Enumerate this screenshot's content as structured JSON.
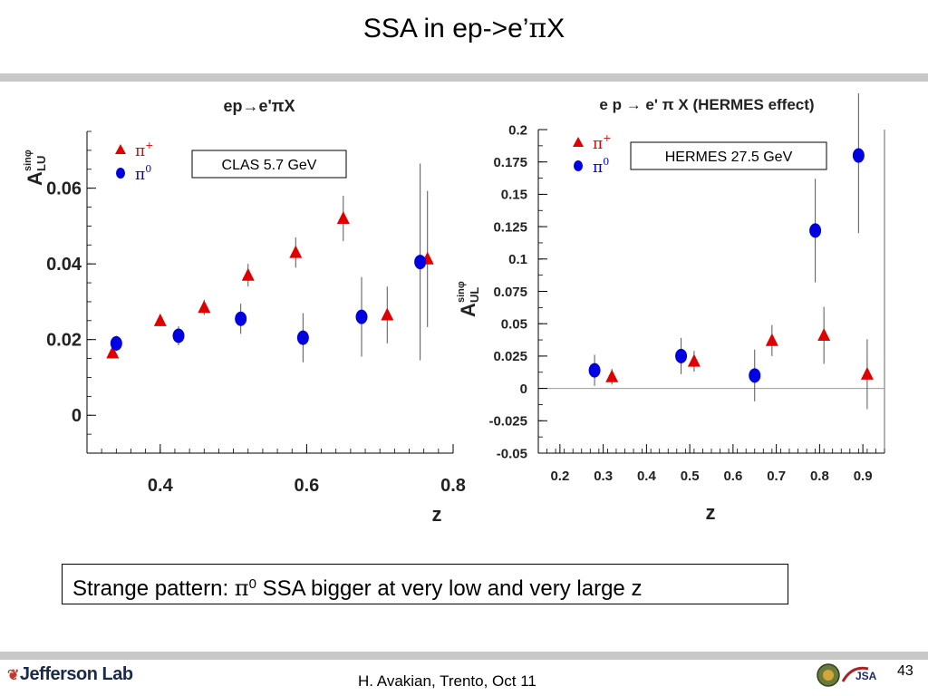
{
  "slide": {
    "title_prefix": "SSA in ep->e’",
    "title_pi": "π",
    "title_suffix": "X",
    "note_prefix": "Strange pattern: ",
    "note_pi": "π",
    "note_sup": "0",
    "note_suffix": " SSA bigger at very low and very large z",
    "footer": "H. Avakian, Trento, Oct 11",
    "page_number": "43",
    "logo_left": "Jefferson Lab",
    "logo_right": "JSA"
  },
  "chart_data": [
    {
      "type": "scatter",
      "title": "ep→e'πX",
      "xlabel": "z",
      "ylabel_main": "A",
      "ylabel_sup": "sinφ",
      "ylabel_sub": "LU",
      "annotation": "CLAS 5.7 GeV",
      "xlim": [
        0.3,
        0.8
      ],
      "ylim": [
        -0.01,
        0.075
      ],
      "xticks": [
        0.4,
        0.6,
        0.8
      ],
      "xtick_labels": [
        "0.4",
        "0.6",
        "0.8"
      ],
      "yticks": [
        0,
        0.02,
        0.04,
        0.06
      ],
      "ytick_labels": [
        "0",
        "0.02",
        "0.04",
        "0.06"
      ],
      "grid": false,
      "legend_position": "top-left",
      "series": [
        {
          "name": "π+",
          "marker": "triangle",
          "color": "#e00000",
          "points": [
            {
              "x": 0.335,
              "y": 0.0165,
              "err": 0.0015
            },
            {
              "x": 0.4,
              "y": 0.025,
              "err": 0.0015
            },
            {
              "x": 0.46,
              "y": 0.0285,
              "err": 0.002
            },
            {
              "x": 0.52,
              "y": 0.037,
              "err": 0.003
            },
            {
              "x": 0.585,
              "y": 0.043,
              "err": 0.004
            },
            {
              "x": 0.65,
              "y": 0.052,
              "err": 0.006
            },
            {
              "x": 0.71,
              "y": 0.0265,
              "err": 0.0075
            },
            {
              "x": 0.765,
              "y": 0.0413,
              "err": 0.018
            }
          ]
        },
        {
          "name": "π0",
          "marker": "circle",
          "color": "#0000e0",
          "points": [
            {
              "x": 0.34,
              "y": 0.019,
              "err": 0.002
            },
            {
              "x": 0.425,
              "y": 0.021,
              "err": 0.0025
            },
            {
              "x": 0.51,
              "y": 0.0255,
              "err": 0.004
            },
            {
              "x": 0.595,
              "y": 0.0205,
              "err": 0.0065
            },
            {
              "x": 0.675,
              "y": 0.026,
              "err": 0.0105
            },
            {
              "x": 0.755,
              "y": 0.0405,
              "err": 0.026
            }
          ]
        }
      ]
    },
    {
      "type": "scatter",
      "title": "e p → e' π X (HERMES effect)",
      "xlabel": "z",
      "ylabel_main": "A",
      "ylabel_sup": "sinφ",
      "ylabel_sub": "UL",
      "annotation": "HERMES 27.5 GeV",
      "xlim": [
        0.15,
        0.95
      ],
      "ylim": [
        -0.05,
        0.2
      ],
      "xticks": [
        0.2,
        0.3,
        0.4,
        0.5,
        0.6,
        0.7,
        0.8,
        0.9
      ],
      "xtick_labels": [
        "0.2",
        "0.3",
        "0.4",
        "0.5",
        "0.6",
        "0.7",
        "0.8",
        "0.9"
      ],
      "yticks": [
        -0.05,
        -0.025,
        0,
        0.025,
        0.05,
        0.075,
        0.1,
        0.125,
        0.15,
        0.175,
        0.2
      ],
      "ytick_labels": [
        "-0.05",
        "-0.025",
        "0",
        "0.025",
        "0.05",
        "0.075",
        "0.1",
        "0.125",
        "0.15",
        "0.175",
        "0.2"
      ],
      "zero_line": true,
      "grid": false,
      "legend_position": "top-left",
      "series": [
        {
          "name": "π+",
          "marker": "triangle",
          "color": "#e00000",
          "points": [
            {
              "x": 0.32,
              "y": 0.009,
              "err": 0.006
            },
            {
              "x": 0.51,
              "y": 0.021,
              "err": 0.008
            },
            {
              "x": 0.69,
              "y": 0.037,
              "err": 0.012
            },
            {
              "x": 0.81,
              "y": 0.041,
              "err": 0.022
            },
            {
              "x": 0.91,
              "y": 0.011,
              "err": 0.027
            }
          ]
        },
        {
          "name": "π0",
          "marker": "circle",
          "color": "#0000e0",
          "points": [
            {
              "x": 0.28,
              "y": 0.014,
              "err": 0.012
            },
            {
              "x": 0.48,
              "y": 0.025,
              "err": 0.014
            },
            {
              "x": 0.65,
              "y": 0.01,
              "err": 0.02
            },
            {
              "x": 0.79,
              "y": 0.122,
              "err": 0.04
            },
            {
              "x": 0.89,
              "y": 0.18,
              "err": 0.06
            }
          ]
        }
      ]
    }
  ]
}
